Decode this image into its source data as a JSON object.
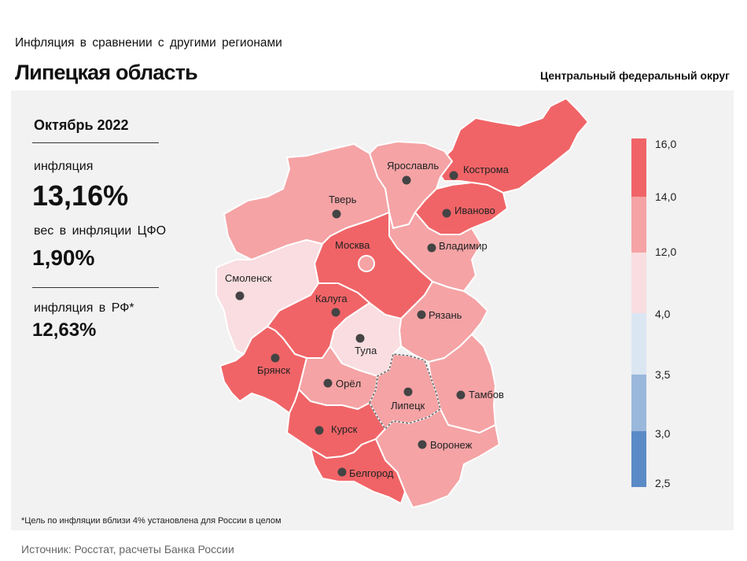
{
  "header": {
    "subtitle": "Инфляция  в сравнении  с другими  регионами",
    "title": "Липецкая область",
    "district": "Центральный федеральный округ"
  },
  "sidebar": {
    "period": "Октябрь 2022",
    "inflation_label": "инфляция",
    "inflation_value": "13,16%",
    "weight_label": "вес в инфляции  ЦФО",
    "weight_value": "1,90%",
    "rf_label": "инфляция  в РФ*",
    "rf_value": "12,63%"
  },
  "legend": {
    "ticks": [
      "16,0",
      "14,0",
      "12,0",
      "4,0",
      "3,5",
      "3,0",
      "2,5"
    ],
    "colors": [
      "#f06467",
      "#f5a3a5",
      "#f9dde0",
      "#dbe6f3",
      "#9ab8dc",
      "#5a8bc6"
    ]
  },
  "regions": [
    {
      "name": "Кострома",
      "color": "#f06467"
    },
    {
      "name": "Ярославль",
      "color": "#f5a3a5"
    },
    {
      "name": "Тверь",
      "color": "#f5a3a5"
    },
    {
      "name": "Иваново",
      "color": "#f06467"
    },
    {
      "name": "Владимир",
      "color": "#f5a3a5"
    },
    {
      "name": "Москва",
      "color": "#f06467"
    },
    {
      "name": "Смоленск",
      "color": "#f9dde0"
    },
    {
      "name": "Калуга",
      "color": "#f06467"
    },
    {
      "name": "Рязань",
      "color": "#f5a3a5"
    },
    {
      "name": "Тула",
      "color": "#f9dde0"
    },
    {
      "name": "Брянск",
      "color": "#f06467"
    },
    {
      "name": "Орёл",
      "color": "#f5a3a5"
    },
    {
      "name": "Липецк",
      "color": "#f5a3a5"
    },
    {
      "name": "Тамбов",
      "color": "#f5a3a5"
    },
    {
      "name": "Курск",
      "color": "#f06467"
    },
    {
      "name": "Воронеж",
      "color": "#f5a3a5"
    },
    {
      "name": "Белгород",
      "color": "#f06467"
    }
  ],
  "footnote": "*Цель по инфляции вблизи 4% установлена для России в целом",
  "source": "Источник: Росстат, расчеты Банка России"
}
